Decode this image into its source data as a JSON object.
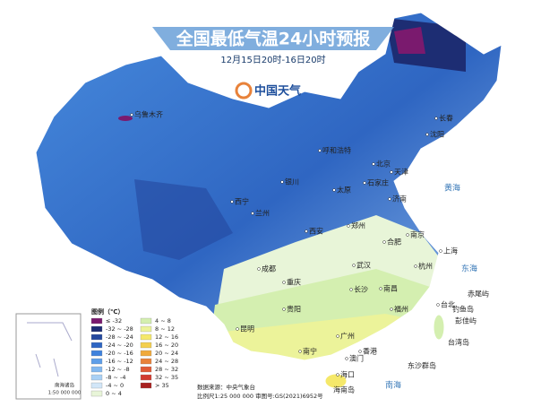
{
  "header": {
    "title": "全国最低气温24小时预报",
    "subtitle": "12月15日20时-16日20时",
    "logo": "中国天气"
  },
  "legend": {
    "title": "图例（℃）",
    "items": [
      {
        "label": "≤ -32",
        "color": "#7a1a6e"
      },
      {
        "label": "-32 ~ -28",
        "color": "#1d2d73"
      },
      {
        "label": "-28 ~ -24",
        "color": "#24489e"
      },
      {
        "label": "-24 ~ -20",
        "color": "#2f66c2"
      },
      {
        "label": "-20 ~ -16",
        "color": "#3f82dc"
      },
      {
        "label": "-16 ~ -12",
        "color": "#5d9ee8"
      },
      {
        "label": "-12 ~ -8",
        "color": "#82b8ef"
      },
      {
        "label": "-8 ~ -4",
        "color": "#a9d0f5"
      },
      {
        "label": "-4 ~ 0",
        "color": "#d2e6f8"
      },
      {
        "label": "0 ~ 4",
        "color": "#e8f5d8"
      },
      {
        "label": "4 ~ 8",
        "color": "#d4efb0"
      },
      {
        "label": "8 ~ 12",
        "color": "#ecf39a"
      },
      {
        "label": "12 ~ 16",
        "color": "#f5e86a"
      },
      {
        "label": "16 ~ 20",
        "color": "#f3cf4f"
      },
      {
        "label": "20 ~ 24",
        "color": "#f0aa3c"
      },
      {
        "label": "24 ~ 28",
        "color": "#e8823a"
      },
      {
        "label": "28 ~ 32",
        "color": "#e05a35"
      },
      {
        "label": "32 ~ 35",
        "color": "#d13a2f"
      },
      {
        "label": "> 35",
        "color": "#a8201f"
      }
    ]
  },
  "cities": [
    "乌鲁木齐",
    "呼和浩特",
    "北京",
    "天津",
    "石家庄",
    "银川",
    "太原",
    "济南",
    "西宁",
    "兰州",
    "郑州",
    "西安",
    "合肥",
    "南京",
    "上海",
    "武汉",
    "杭州",
    "成都",
    "重庆",
    "长沙",
    "南昌",
    "贵阳",
    "福州",
    "台北",
    "昆明",
    "南宁",
    "广州",
    "香港",
    "澳门",
    "海口",
    "沈阳",
    "长春"
  ],
  "seas": [
    "黄海",
    "东海",
    "南海"
  ],
  "islands": [
    "赤尾屿",
    "钓鱼岛",
    "彭佳屿",
    "台湾岛",
    "东沙群岛",
    "海南岛"
  ],
  "inset": {
    "title": "南海诸岛",
    "scale": "1:50 000 000"
  },
  "footer": {
    "source": "数据来源：中央气象台",
    "scale": "比例尺1:25 000 000   审图号:GS(2021)6952号"
  }
}
